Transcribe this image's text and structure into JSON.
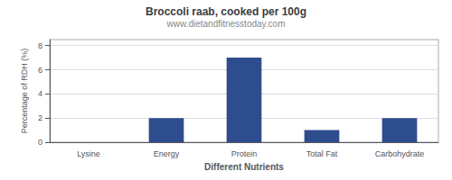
{
  "chart_data": {
    "type": "bar",
    "title": "Broccoli raab, cooked per 100g",
    "subtitle": "www.dietandfitnesstoday.com",
    "xlabel": "Different Nutrients",
    "ylabel": "Percentage of RDH (%)",
    "categories": [
      "Lysine",
      "Energy",
      "Protein",
      "Total Fat",
      "Carbohydrate"
    ],
    "values": [
      0,
      2,
      7,
      1,
      2
    ],
    "color": "#2e4d8e",
    "ylim": [
      0,
      8.5
    ],
    "yticks": [
      0,
      2,
      4,
      6,
      8
    ],
    "grid": true
  }
}
